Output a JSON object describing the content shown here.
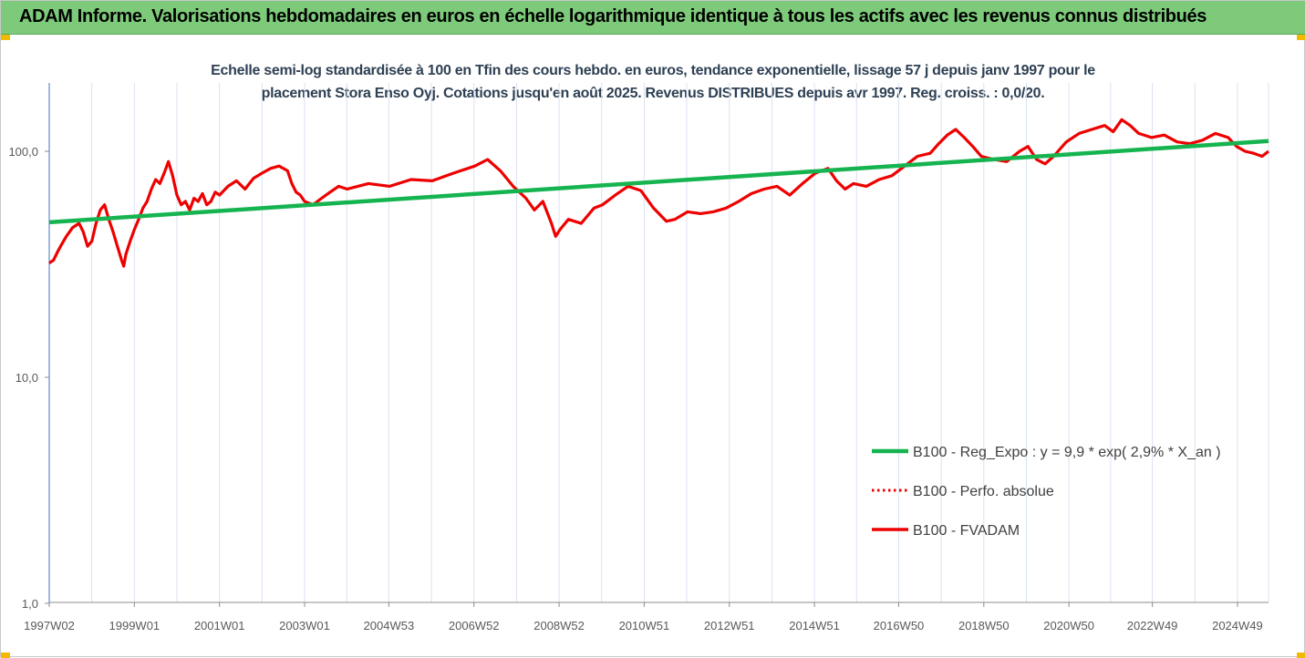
{
  "banner": {
    "title": "ADAM Informe. Valorisations hebdomadaires en euros en échelle logarithmique identique à tous les actifs avec les revenus connus distribués"
  },
  "chart_data": {
    "type": "line",
    "title_line1": "Echelle semi-log standardisée à 100 en Tfin des cours hebdo. en euros, tendance exponentielle, lissage 57 j depuis janv 1997 pour le",
    "title_line2": "placement Stora Enso Oyj. Cotations jusqu'en août 2025. Revenus DISTRIBUES depuis avr 1997. Reg. croiss. : 0,0/20.",
    "y_scale": "log",
    "ylim": [
      1,
      200
    ],
    "y_ticks": [
      1,
      10,
      100
    ],
    "y_tick_labels": [
      "1,0",
      "10,0",
      "100,0"
    ],
    "xlim": [
      1997.0,
      2025.65
    ],
    "x_ticks": [
      1997.0,
      1999.0,
      2001.0,
      2003.0,
      2004.98,
      2006.98,
      2008.98,
      2010.98,
      2012.98,
      2014.98,
      2016.96,
      2018.96,
      2020.96,
      2022.92,
      2024.92
    ],
    "x_tick_labels": [
      "1997W02",
      "1999W01",
      "2001W01",
      "2003W01",
      "2004W53",
      "2006W52",
      "2008W52",
      "2010W51",
      "2012W51",
      "2014W51",
      "2016W50",
      "2018W50",
      "2020W50",
      "2022W49",
      "2024W49"
    ],
    "grid": "vertical",
    "legend_position": "right",
    "colors": {
      "trend": "#16b450",
      "series": "#ee0000",
      "grid": "#d9e1f2",
      "axis": "#4472c4"
    },
    "series": [
      {
        "name": "B100 - Reg_Expo : y = 9,9 * exp( 2,9% *  X_an )",
        "style": "solid",
        "color": "#16b450",
        "x": [
          1997.0,
          2025.65
        ],
        "y": [
          48.5,
          111
        ]
      },
      {
        "name": "B100 - Perfo. absolue",
        "style": "dotted",
        "color": "#ee0000",
        "x": [],
        "y": []
      },
      {
        "name": "B100 - FVADAM",
        "style": "solid",
        "color": "#ee0000",
        "x": [
          1997.0,
          1997.1,
          1997.2,
          1997.3,
          1997.4,
          1997.55,
          1997.7,
          1997.8,
          1997.9,
          1998.0,
          1998.1,
          1998.2,
          1998.3,
          1998.4,
          1998.5,
          1998.6,
          1998.7,
          1998.75,
          1998.8,
          1998.9,
          1999.0,
          1999.1,
          1999.2,
          1999.3,
          1999.4,
          1999.5,
          1999.6,
          1999.7,
          1999.8,
          1999.9,
          2000.0,
          2000.1,
          2000.2,
          2000.3,
          2000.4,
          2000.5,
          2000.6,
          2000.7,
          2000.8,
          2000.9,
          2001.0,
          2001.2,
          2001.4,
          2001.6,
          2001.8,
          2002.0,
          2002.2,
          2002.4,
          2002.6,
          2002.7,
          2002.8,
          2002.9,
          2003.0,
          2003.2,
          2003.4,
          2003.6,
          2003.8,
          2004.0,
          2004.5,
          2005.0,
          2005.5,
          2006.0,
          2006.5,
          2007.0,
          2007.3,
          2007.6,
          2007.9,
          2008.2,
          2008.4,
          2008.6,
          2008.8,
          2008.9,
          2009.0,
          2009.2,
          2009.5,
          2009.8,
          2010.0,
          2010.3,
          2010.6,
          2010.9,
          2011.2,
          2011.5,
          2011.7,
          2012.0,
          2012.3,
          2012.6,
          2012.9,
          2013.2,
          2013.5,
          2013.8,
          2014.1,
          2014.4,
          2014.7,
          2015.0,
          2015.3,
          2015.5,
          2015.7,
          2015.9,
          2016.2,
          2016.5,
          2016.8,
          2017.1,
          2017.4,
          2017.7,
          2017.9,
          2018.1,
          2018.3,
          2018.5,
          2018.7,
          2018.9,
          2019.2,
          2019.5,
          2019.8,
          2020.0,
          2020.2,
          2020.4,
          2020.6,
          2020.9,
          2021.2,
          2021.5,
          2021.8,
          2022.0,
          2022.2,
          2022.4,
          2022.6,
          2022.9,
          2023.2,
          2023.5,
          2023.8,
          2024.1,
          2024.4,
          2024.7,
          2024.9,
          2025.1,
          2025.3,
          2025.5,
          2025.65
        ],
        "y": [
          32,
          33,
          36,
          39,
          42,
          46,
          48,
          44,
          38,
          40,
          48,
          55,
          58,
          50,
          44,
          38,
          33,
          31,
          35,
          40,
          45,
          50,
          56,
          60,
          68,
          75,
          72,
          80,
          90,
          78,
          64,
          58,
          60,
          55,
          62,
          60,
          65,
          58,
          60,
          66,
          64,
          70,
          74,
          68,
          76,
          80,
          84,
          86,
          82,
          72,
          66,
          64,
          60,
          58,
          62,
          66,
          70,
          68,
          72,
          70,
          75,
          74,
          80,
          86,
          92,
          82,
          70,
          62,
          55,
          60,
          48,
          42,
          45,
          50,
          48,
          56,
          58,
          64,
          70,
          67,
          56,
          49,
          50,
          54,
          53,
          54,
          56,
          60,
          65,
          68,
          70,
          64,
          72,
          80,
          84,
          74,
          68,
          72,
          70,
          75,
          78,
          86,
          95,
          98,
          108,
          118,
          125,
          115,
          105,
          95,
          92,
          90,
          100,
          105,
          92,
          88,
          95,
          110,
          120,
          125,
          130,
          122,
          138,
          130,
          120,
          115,
          118,
          110,
          108,
          112,
          120,
          115,
          105,
          100,
          98,
          95,
          100
        ]
      }
    ]
  }
}
